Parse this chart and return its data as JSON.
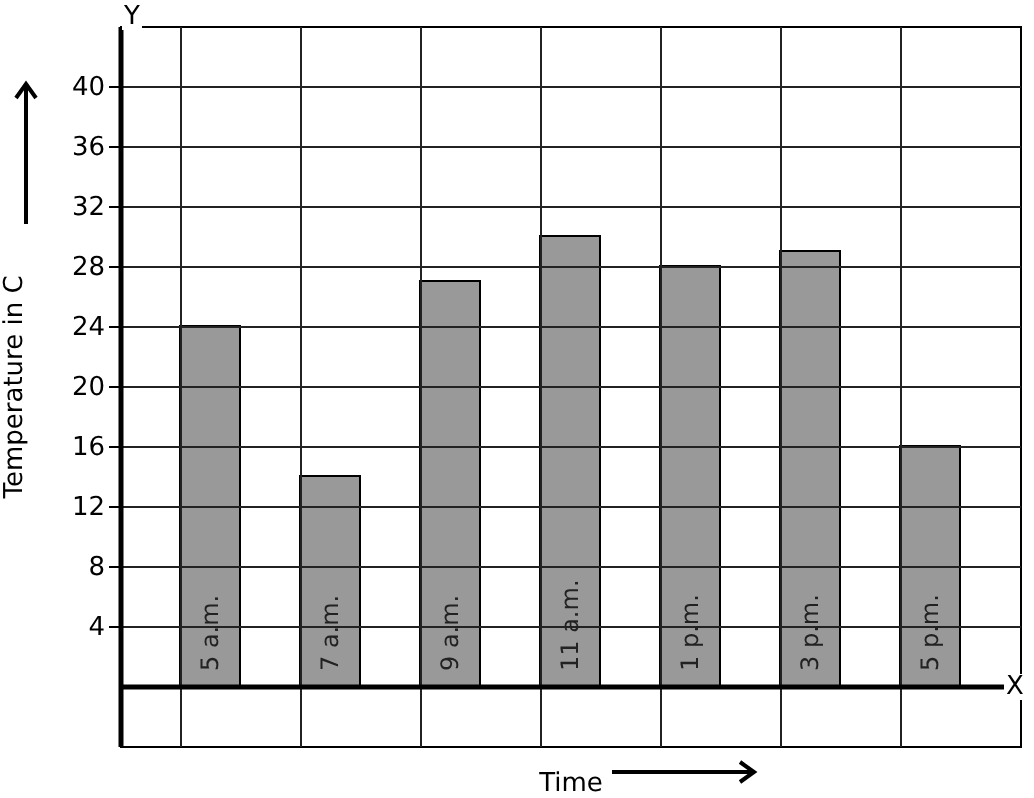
{
  "chart_data": {
    "type": "bar",
    "xlabel": "Time",
    "ylabel": "Temperature in C",
    "categories": [
      "5 a.m.",
      "7 a.m.",
      "9 a.m.",
      "11 a.m.",
      "1 p.m.",
      "3 p.m.",
      "5 p.m."
    ],
    "values": [
      24,
      14,
      27,
      30,
      28,
      29,
      16
    ],
    "color": "#999999",
    "ylim": [
      -4,
      44
    ],
    "yticks": [
      4,
      8,
      12,
      16,
      20,
      24,
      28,
      32,
      36,
      40
    ],
    "grid": true,
    "annotations": [
      "Y",
      "X"
    ]
  }
}
